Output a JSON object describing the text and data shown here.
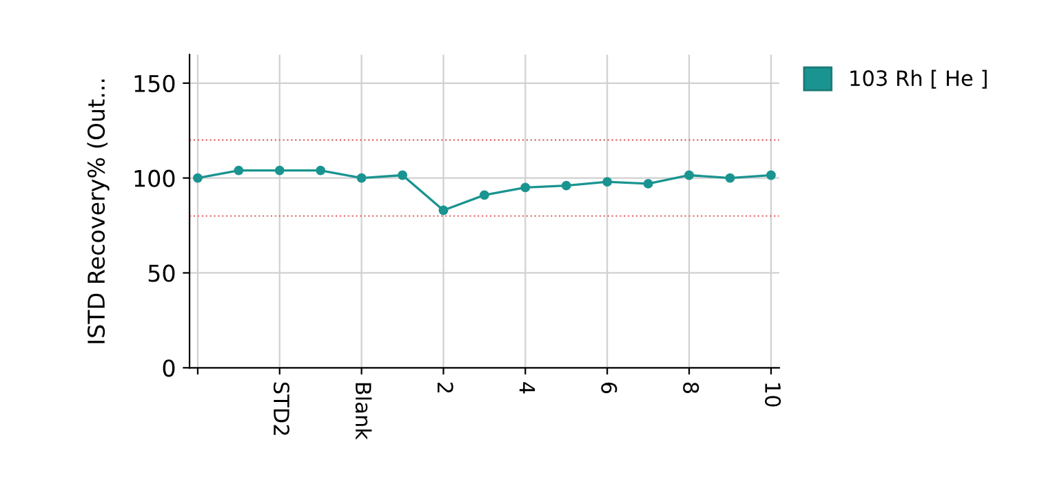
{
  "chart_data": {
    "type": "line",
    "ylabel": "ISTD Recovery% (Out...",
    "categories": [
      null,
      null,
      "STD2",
      null,
      "Blank",
      null,
      "2",
      null,
      "4",
      null,
      "6",
      null,
      "8",
      null,
      "10"
    ],
    "series": [
      {
        "name": "103 Rh [ He ]",
        "color": "#1a9490",
        "values": [
          100,
          104,
          104,
          104,
          100,
          101.5,
          83,
          91,
          95,
          96,
          98,
          97,
          101.5,
          100,
          101.5
        ]
      }
    ],
    "ylim": [
      0,
      165
    ],
    "yticks": [
      0,
      50,
      100,
      150
    ],
    "ref_lines": [
      {
        "axis": "y",
        "value": 120,
        "color": "#e06666",
        "line_style": "dotted"
      },
      {
        "axis": "y",
        "value": 80,
        "color": "#e06666",
        "line_style": "dotted"
      }
    ],
    "grid": true,
    "legend": "top right",
    "marker": "circle",
    "line_style": "solid"
  }
}
